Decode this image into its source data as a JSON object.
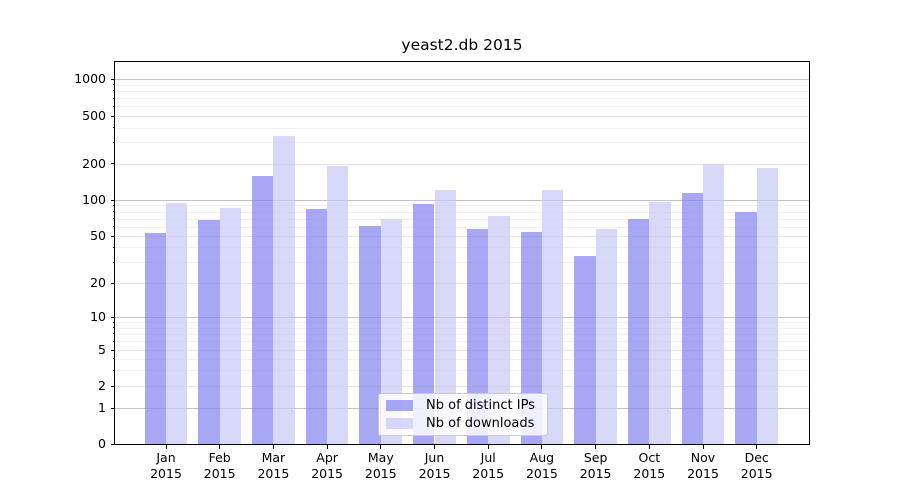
{
  "figure": {
    "title": "yeast2.db 2015",
    "background": "#ffffff"
  },
  "chart_data": {
    "type": "bar",
    "title": "yeast2.db 2015",
    "categories": [
      "Jan",
      "Feb",
      "Mar",
      "Apr",
      "May",
      "Jun",
      "Jul",
      "Aug",
      "Sep",
      "Oct",
      "Nov",
      "Dec"
    ],
    "category_year": "2015",
    "series": [
      {
        "name": "Nb of distinct IPs",
        "color": "#8282ee",
        "alpha": 0.7,
        "values": [
          53,
          68,
          158,
          84,
          61,
          92,
          57,
          54,
          34,
          70,
          115,
          80
        ]
      },
      {
        "name": "Nb of downloads",
        "color": "#c8c8f5",
        "alpha": 0.7,
        "values": [
          95,
          86,
          340,
          190,
          69,
          121,
          73,
          122,
          57,
          96,
          200,
          184
        ]
      }
    ],
    "yscale": "symlog",
    "ylim": [
      0,
      1400
    ],
    "yticks": [
      0,
      1,
      2,
      5,
      10,
      20,
      50,
      100,
      200,
      500,
      1000
    ],
    "gridlines": {
      "major": [
        1,
        10,
        100,
        1000
      ],
      "labeled": [
        2,
        5,
        20,
        50,
        200,
        500
      ],
      "minor": [
        3,
        4,
        6,
        7,
        8,
        9,
        30,
        40,
        60,
        70,
        80,
        90,
        300,
        400,
        600,
        700,
        800,
        900
      ]
    },
    "legend": {
      "position": "lower center",
      "entries": [
        "Nb of distinct IPs",
        "Nb of downloads"
      ]
    }
  }
}
